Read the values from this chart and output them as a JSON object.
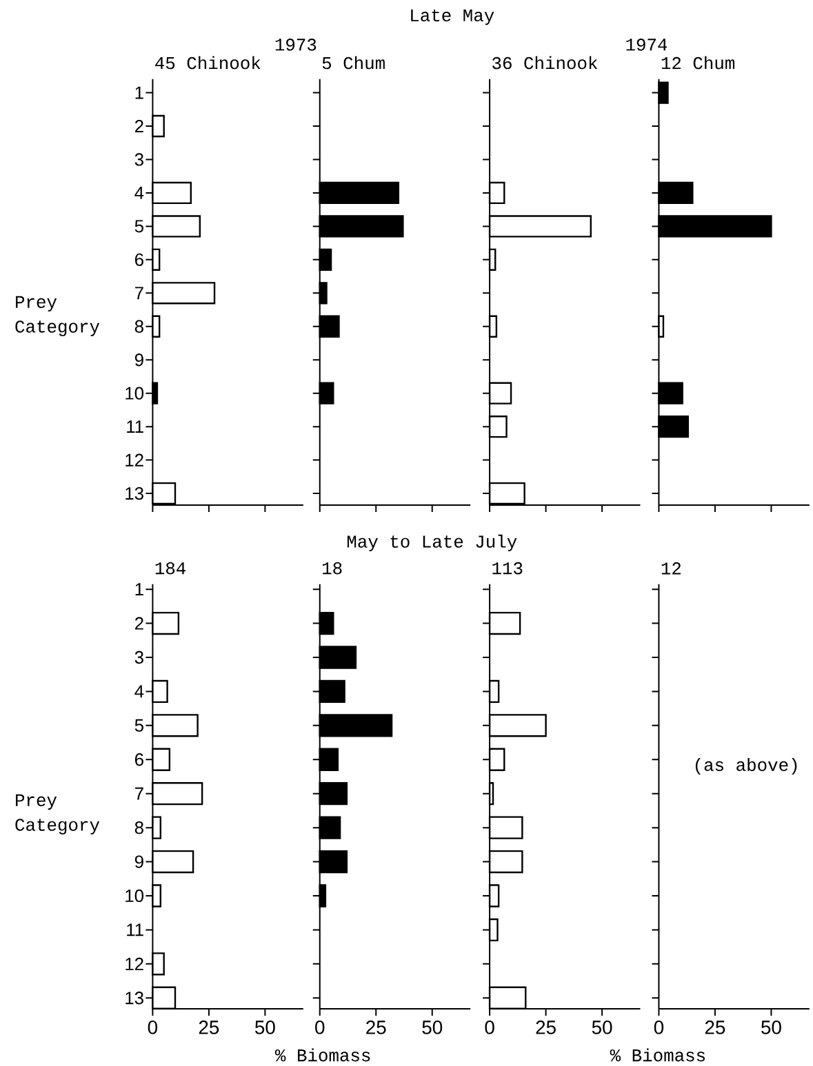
{
  "chart_data": [
    {
      "type": "bar",
      "orientation": "horizontal",
      "title": "45 Chinook",
      "ylabel": "Prey Category",
      "annotations": [
        "Late May",
        "1973"
      ],
      "categories": [
        "1",
        "2",
        "3",
        "4",
        "5",
        "6",
        "7",
        "8",
        "9",
        "10",
        "11",
        "12",
        "13"
      ],
      "values": [
        null,
        5,
        null,
        17,
        21,
        3,
        27.5,
        3,
        null,
        2,
        null,
        null,
        10
      ],
      "colors": [
        null,
        "#ffffff",
        null,
        "#ffffff",
        "#ffffff",
        "#ffffff",
        "#ffffff",
        "#ffffff",
        null,
        "#000000",
        null,
        null,
        "#ffffff"
      ],
      "xlim": [
        0,
        67
      ],
      "xticks": [
        {
          "value": 0,
          "label": null
        },
        {
          "value": 25,
          "label": null
        },
        {
          "value": 50,
          "label": null
        }
      ],
      "tick_labels": "y"
    },
    {
      "type": "bar",
      "orientation": "horizontal",
      "title": "5 Chum",
      "categories": [
        "1",
        "2",
        "3",
        "4",
        "5",
        "6",
        "7",
        "8",
        "9",
        "10",
        "11",
        "12",
        "13"
      ],
      "values": [
        null,
        null,
        null,
        35,
        37,
        5,
        3,
        8.5,
        null,
        6,
        null,
        null,
        null
      ],
      "color": "#000000",
      "xlim": [
        0,
        67
      ],
      "xticks": [
        {
          "value": 0,
          "label": null
        },
        {
          "value": 25,
          "label": null
        },
        {
          "value": 50,
          "label": null
        }
      ],
      "tick_labels": false
    },
    {
      "type": "bar",
      "orientation": "horizontal",
      "title": "36 Chinook",
      "annotations": [
        "1974"
      ],
      "categories": [
        "1",
        "2",
        "3",
        "4",
        "5",
        "6",
        "7",
        "8",
        "9",
        "10",
        "11",
        "12",
        "13"
      ],
      "values": [
        null,
        null,
        null,
        6.5,
        45,
        2.5,
        null,
        3,
        null,
        9.5,
        7.5,
        null,
        15.5
      ],
      "color": "#ffffff",
      "xlim": [
        0,
        67
      ],
      "xticks": [
        {
          "value": 0,
          "label": null
        },
        {
          "value": 25,
          "label": null
        },
        {
          "value": 50,
          "label": null
        }
      ],
      "tick_labels": false
    },
    {
      "type": "bar",
      "orientation": "horizontal",
      "title": "12 Chum",
      "categories": [
        "1",
        "2",
        "3",
        "4",
        "5",
        "6",
        "7",
        "8",
        "9",
        "10",
        "11",
        "12",
        "13"
      ],
      "values": [
        4,
        null,
        null,
        15,
        50,
        null,
        null,
        2,
        null,
        10.5,
        13,
        null,
        null
      ],
      "colors": [
        "#000000",
        null,
        null,
        "#000000",
        "#000000",
        null,
        null,
        "#ffffff",
        null,
        "#000000",
        "#000000",
        null,
        null
      ],
      "xlim": [
        0,
        67
      ],
      "xticks": [
        {
          "value": 0,
          "label": null
        },
        {
          "value": 25,
          "label": null
        },
        {
          "value": 50,
          "label": null
        }
      ],
      "tick_labels": false
    },
    {
      "type": "bar",
      "orientation": "horizontal",
      "title": "184",
      "ylabel": "Prey Category",
      "xlabel": "% Biomass",
      "annotations": [
        "May to Late July"
      ],
      "categories": [
        "1",
        "2",
        "3",
        "4",
        "5",
        "6",
        "7",
        "8",
        "9",
        "10",
        "11",
        "12",
        "13"
      ],
      "values": [
        null,
        11.5,
        null,
        6.5,
        20,
        7.5,
        22,
        3.5,
        18,
        3.5,
        null,
        5,
        10
      ],
      "color": "#ffffff",
      "xlim": [
        0,
        67
      ],
      "xticks": [
        0,
        25,
        50
      ]
    },
    {
      "type": "bar",
      "orientation": "horizontal",
      "title": "18",
      "categories": [
        "1",
        "2",
        "3",
        "4",
        "5",
        "6",
        "7",
        "8",
        "9",
        "10",
        "11",
        "12",
        "13"
      ],
      "values": [
        null,
        6,
        16,
        11,
        32,
        8,
        12,
        9,
        12,
        2.5,
        null,
        null,
        null
      ],
      "color": "#000000",
      "xlim": [
        0,
        67
      ],
      "xticks": [
        0,
        25,
        50
      ],
      "tick_labels": "x"
    },
    {
      "type": "bar",
      "orientation": "horizontal",
      "title": "113",
      "xlabel": "% Biomass",
      "categories": [
        "1",
        "2",
        "3",
        "4",
        "5",
        "6",
        "7",
        "8",
        "9",
        "10",
        "11",
        "12",
        "13"
      ],
      "values": [
        null,
        13.5,
        null,
        4,
        25,
        6.5,
        1.5,
        14.5,
        14.5,
        4,
        3.5,
        null,
        16
      ],
      "color": "#ffffff",
      "xlim": [
        0,
        67
      ],
      "xticks": [
        0,
        25,
        50
      ],
      "tick_labels": "x"
    },
    {
      "type": "bar",
      "orientation": "horizontal",
      "title": "12",
      "annotations": [
        "(as above)"
      ],
      "categories": [
        "1",
        "2",
        "3",
        "4",
        "5",
        "6",
        "7",
        "8",
        "9",
        "10",
        "11",
        "12",
        "13"
      ],
      "values": [
        null,
        null,
        null,
        null,
        null,
        null,
        null,
        null,
        null,
        null,
        null,
        null,
        null
      ],
      "xlim": [
        0,
        67
      ],
      "xticks": [
        0,
        25,
        50
      ],
      "tick_labels": "x"
    }
  ]
}
